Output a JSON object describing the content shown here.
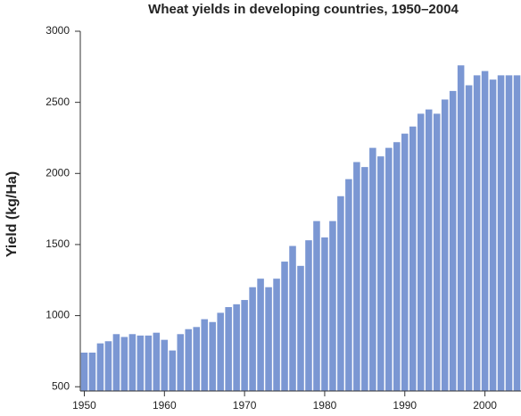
{
  "chart_data": {
    "type": "bar",
    "title": "Wheat yields in developing countries, 1950–2004",
    "y_label": "Yield (kg/Ha)",
    "x": [
      1950,
      1951,
      1952,
      1953,
      1954,
      1955,
      1956,
      1957,
      1958,
      1959,
      1960,
      1961,
      1962,
      1963,
      1964,
      1965,
      1966,
      1967,
      1968,
      1969,
      1970,
      1971,
      1972,
      1973,
      1974,
      1975,
      1976,
      1977,
      1978,
      1979,
      1980,
      1981,
      1982,
      1983,
      1984,
      1985,
      1986,
      1987,
      1988,
      1989,
      1990,
      1991,
      1992,
      1993,
      1994,
      1995,
      1996,
      1997,
      1998,
      1999,
      2000,
      2001,
      2002,
      2003,
      2004
    ],
    "values": [
      740,
      740,
      805,
      820,
      870,
      850,
      870,
      860,
      860,
      880,
      830,
      755,
      870,
      905,
      920,
      975,
      955,
      1020,
      1060,
      1080,
      1110,
      1200,
      1260,
      1200,
      1260,
      1380,
      1490,
      1350,
      1530,
      1665,
      1550,
      1665,
      1840,
      1960,
      2080,
      2045,
      2180,
      2120,
      2180,
      2220,
      2280,
      2330,
      2420,
      2450,
      2420,
      2520,
      2580,
      2760,
      2620,
      2690,
      2720,
      2660,
      2690,
      2690,
      2690
    ],
    "color": "#7b97d3",
    "xlim": [
      1949.5,
      2004.5
    ],
    "xticks": [
      1950,
      1960,
      1970,
      1980,
      1990,
      2000
    ],
    "ylim": [
      470,
      3000
    ],
    "yticks": [
      500,
      1000,
      1500,
      2000,
      2500,
      3000
    ]
  }
}
